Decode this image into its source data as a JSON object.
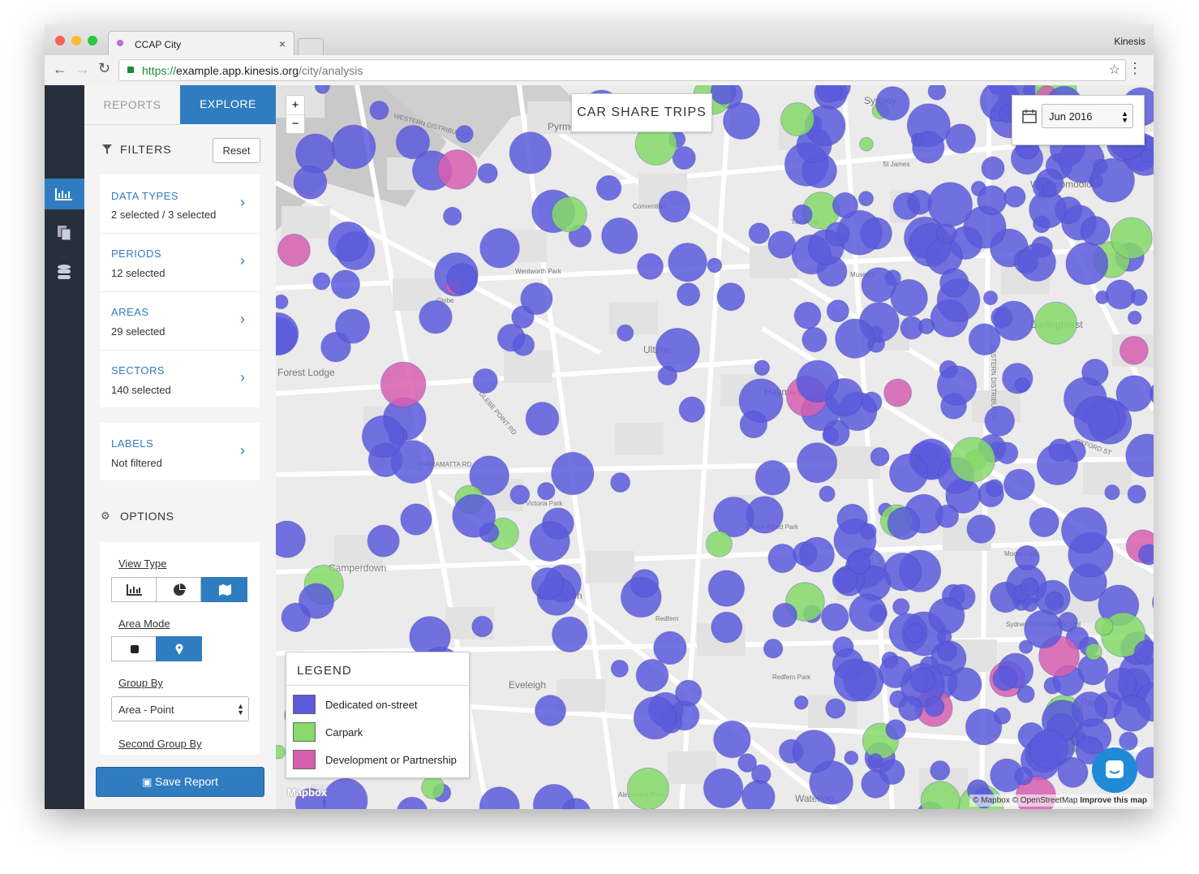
{
  "browser": {
    "tab_title": "CCAP City",
    "profile": "Kinesis",
    "url_scheme": "https://",
    "url_host": "example.app.kinesis.org",
    "url_path": "/city/analysis"
  },
  "panel": {
    "tabs": [
      "REPORTS",
      "EXPLORE"
    ],
    "filters_title": "FILTERS",
    "reset": "Reset",
    "filters": [
      {
        "label": "DATA TYPES",
        "value": "2 selected / 3 selected"
      },
      {
        "label": "PERIODS",
        "value": "12 selected"
      },
      {
        "label": "AREAS",
        "value": "29 selected"
      },
      {
        "label": "SECTORS",
        "value": "140 selected"
      }
    ],
    "labels_filter": {
      "label": "LABELS",
      "value": "Not filtered"
    },
    "options_title": "OPTIONS",
    "view_type": "View Type",
    "area_mode": "Area Mode",
    "group_by": "Group By",
    "group_by_value": "Area - Point",
    "second_group_by": "Second Group By",
    "save": "Save Report"
  },
  "map": {
    "title": "CAR SHARE TRIPS",
    "period": "Jun 2016",
    "zoom_in": "+",
    "zoom_out": "−",
    "legend_title": "LEGEND",
    "legend": [
      {
        "name": "Dedicated on-street",
        "color": "#5b5bdc"
      },
      {
        "name": "Carpark",
        "color": "#86d96a"
      },
      {
        "name": "Development or Partnership",
        "color": "#d65fb0"
      }
    ],
    "attribution": [
      "© Mapbox",
      "© OpenStreetMap",
      "Improve this map"
    ],
    "logo": "Mapbox",
    "places": [
      "Pyrmont",
      "Sydney",
      "Woolloomooloo",
      "Haymarket",
      "Darlinghurst",
      "Forest Lodge",
      "Camperdown",
      "Darlington",
      "Eveleigh",
      "Moore Park",
      "Waterloo",
      "Ultimo",
      "Wentworth Park",
      "Victoria Park",
      "Prince Alfred Park",
      "Redfern Park",
      "Redfern",
      "Town Hall",
      "Museum",
      "St James",
      "Alexandria Park",
      "Moore Park",
      "Sydney Boys High School",
      "Convention",
      "Glebe",
      "WESTERN DISTRIBUTOR",
      "PARRAMATTA RD",
      "OXFORD ST",
      "EASTERN DISTRIBUTOR",
      "GLEBE POINT RD"
    ]
  }
}
